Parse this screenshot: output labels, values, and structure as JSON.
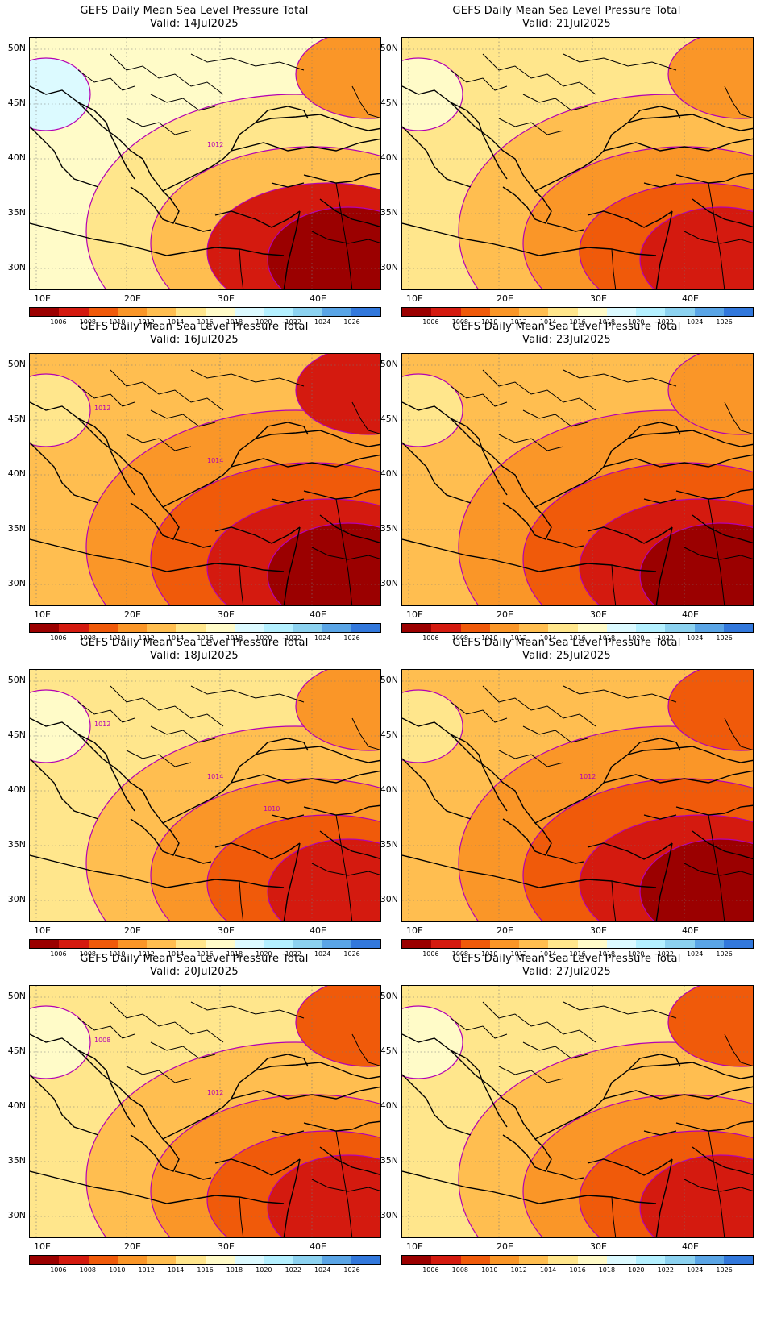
{
  "panels": [
    {
      "title": "GEFS Daily Mean Sea Level Pressure Total",
      "valid": "Valid:  14Jul2025",
      "contour_labels": [
        "1012"
      ]
    },
    {
      "title": "GEFS Daily Mean Sea Level Pressure Total",
      "valid": "Valid:  21Jul2025",
      "contour_labels": []
    },
    {
      "title": "GEFS Daily Mean Sea Level Pressure Total",
      "valid": "Valid:  16Jul2025",
      "contour_labels": [
        "1014",
        "1012"
      ]
    },
    {
      "title": "GEFS Daily Mean Sea Level Pressure Total",
      "valid": "Valid:  23Jul2025",
      "contour_labels": []
    },
    {
      "title": "GEFS Daily Mean Sea Level Pressure Total",
      "valid": "Valid:  18Jul2025",
      "contour_labels": [
        "1014",
        "1012",
        "1010"
      ]
    },
    {
      "title": "GEFS Daily Mean Sea Level Pressure Total",
      "valid": "Valid:  25Jul2025",
      "contour_labels": [
        "1012"
      ]
    },
    {
      "title": "GEFS Daily Mean Sea Level Pressure Total",
      "valid": "Valid:  20Jul2025",
      "contour_labels": [
        "1012",
        "1008"
      ]
    },
    {
      "title": "GEFS Daily Mean Sea Level Pressure Total",
      "valid": "Valid:  27Jul2025",
      "contour_labels": []
    }
  ],
  "axes": {
    "lat_labels": [
      "50N",
      "45N",
      "40N",
      "35N",
      "30N"
    ],
    "lon_labels": [
      "10E",
      "20E",
      "30E",
      "40E"
    ]
  },
  "colorbar": {
    "labels": [
      "1006",
      "1008",
      "1010",
      "1012",
      "1014",
      "1016",
      "1018",
      "1020",
      "1022",
      "1024",
      "1026"
    ],
    "colors": [
      "#9b0000",
      "#d41a0f",
      "#f05a0a",
      "#fa9628",
      "#ffbe50",
      "#ffe68c",
      "#fffbc8",
      "#dcfaff",
      "#b4f0ff",
      "#8cd2f0",
      "#5aa5e6",
      "#3278dc"
    ]
  }
}
